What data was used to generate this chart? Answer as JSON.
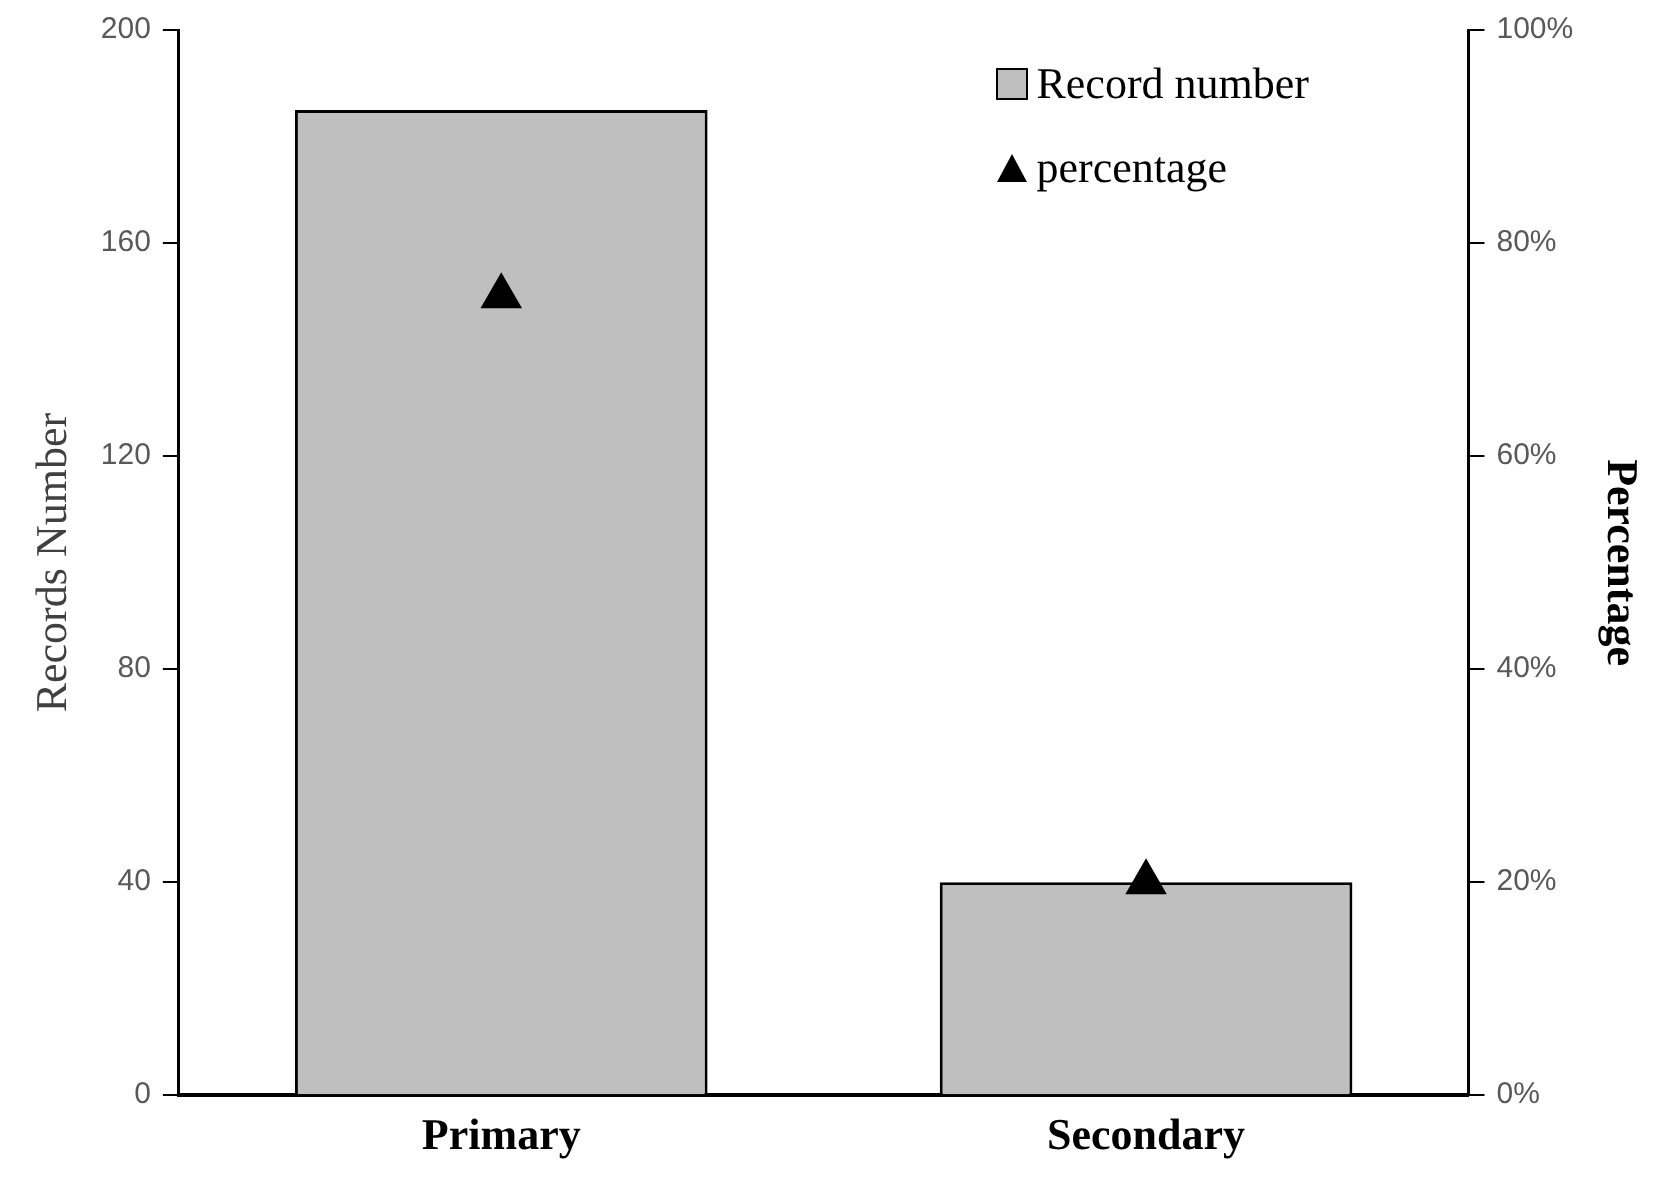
{
  "chart_data": {
    "type": "bar",
    "ylabel": "Records Number",
    "y2label": "Percentage",
    "categories": [
      "Primary",
      "Secondary"
    ],
    "series": [
      {
        "name": "Record number",
        "color": "#bfbfbf",
        "values": [
          185,
          40
        ]
      },
      {
        "name": "percentage",
        "type": "scatter",
        "axis": "y2",
        "color": "#000000",
        "marker": "triangle",
        "values": [
          75,
          20
        ]
      }
    ],
    "ylim": [
      0,
      200
    ],
    "yticks": [
      0,
      40,
      80,
      120,
      160,
      200
    ],
    "y2lim": [
      0,
      100
    ],
    "y2ticks": [
      {
        "value": 0,
        "label": "0%"
      },
      {
        "value": 20,
        "label": "20%"
      },
      {
        "value": 40,
        "label": "40%"
      },
      {
        "value": 60,
        "label": "60%"
      },
      {
        "value": 80,
        "label": "80%"
      },
      {
        "value": 100,
        "label": "100%"
      }
    ],
    "legend": "top right"
  }
}
